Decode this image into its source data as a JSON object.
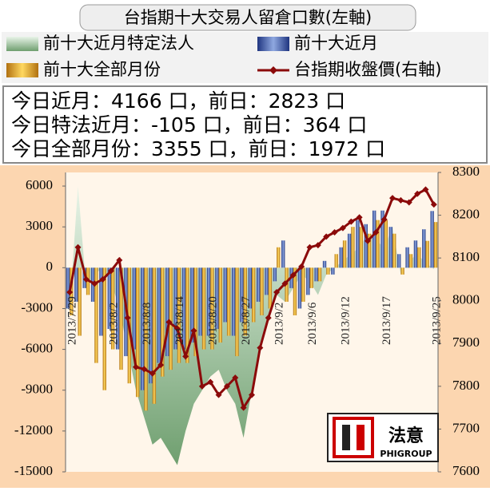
{
  "chart_data": {
    "type": "combo",
    "title": "台指期十大交易人留倉口數(左軸)",
    "info": [
      "今日近月：4166 口，前日：2823 口",
      "今日特法近月：-105 口，前日：364 口",
      "今日全部月份：3355 口，前日：1972 口"
    ],
    "logo": {
      "name": "法意",
      "sub": "PHIGROUP"
    },
    "categories": [
      "2013/7/29",
      null,
      null,
      null,
      null,
      "2013/8/2",
      null,
      null,
      null,
      "2013/8/8",
      null,
      null,
      null,
      "2013/8/14",
      null,
      null,
      null,
      "2013/8/20",
      null,
      null,
      null,
      "2013/8/27",
      null,
      null,
      null,
      "2013/9/2",
      null,
      null,
      null,
      "2013/9/6",
      null,
      null,
      null,
      "2013/9/12",
      null,
      null,
      null,
      null,
      "2013/9/17",
      null,
      null,
      null,
      null,
      null,
      "2013/9/25"
    ],
    "ylim": [
      -15000,
      7000
    ],
    "yticks": [
      6000,
      3000,
      0,
      -3000,
      -6000,
      -9000,
      -12000,
      -15000
    ],
    "y2lim": [
      7600,
      8300
    ],
    "y2ticks": [
      8300,
      8200,
      8100,
      8000,
      7900,
      7800,
      7700,
      7600
    ],
    "grid": false,
    "series": [
      {
        "name": "前十大近月特定法人",
        "type": "area",
        "color": "#8cbf8c",
        "values": [
          -3000,
          6000,
          -1500,
          -500,
          0,
          -1000,
          -3000,
          -6000,
          -9000,
          -11000,
          -13000,
          -12500,
          -13500,
          -14500,
          -12000,
          -10000,
          -9000,
          -8000,
          -7500,
          -9000,
          -10000,
          -12500,
          -9000,
          -6000,
          -3500,
          -2000,
          -2500,
          -1500,
          -500,
          -1000,
          -2000,
          -500,
          0,
          500,
          1000,
          1500,
          2500,
          2000,
          1500,
          3000,
          -500,
          500,
          1000,
          364,
          -105
        ]
      },
      {
        "name": "前十大近月",
        "type": "bar",
        "color": "#3355aa",
        "values": [
          -3000,
          -2500,
          -1500,
          -2500,
          -5000,
          -4500,
          -6000,
          -6500,
          -6000,
          -9000,
          -8500,
          -7000,
          -6500,
          -6000,
          -6000,
          -5500,
          -5000,
          -5000,
          -4500,
          -4000,
          -5000,
          -4000,
          -3000,
          -2500,
          -2000,
          -1000,
          2000,
          -1500,
          -3000,
          -2000,
          -1000,
          500,
          -500,
          1500,
          2500,
          3500,
          3200,
          4200,
          4200,
          3000,
          1000,
          1500,
          2000,
          2823,
          4166
        ]
      },
      {
        "name": "前十大全部月份",
        "type": "bar",
        "color": "#e8a020",
        "values": [
          -3500,
          -5000,
          -2000,
          -7000,
          -9000,
          -6000,
          -7500,
          -8500,
          -9500,
          -10500,
          -10000,
          -8000,
          -7500,
          -7000,
          -7000,
          -6500,
          -6000,
          -6000,
          -5500,
          -5000,
          -6500,
          -5000,
          -4000,
          -3500,
          -3000,
          1500,
          -2500,
          -3500,
          -2500,
          -1500,
          -1000,
          -500,
          1000,
          2000,
          3000,
          3000,
          2500,
          3500,
          3500,
          2500,
          -500,
          1000,
          1500,
          1972,
          3355
        ]
      },
      {
        "name": "台指期收盤價(右軸)",
        "type": "line",
        "axis": "y2",
        "color": "#8b0a0a",
        "values": [
          8020,
          8125,
          8050,
          8040,
          8050,
          8070,
          8095,
          7960,
          7845,
          7840,
          7830,
          7850,
          7950,
          7935,
          7870,
          7930,
          7800,
          7810,
          7780,
          7800,
          7820,
          7750,
          7780,
          7890,
          7960,
          8020,
          8040,
          8060,
          8080,
          8125,
          8130,
          8150,
          8160,
          8170,
          8185,
          8195,
          8140,
          8160,
          8190,
          8240,
          8235,
          8230,
          8250,
          8260,
          8225
        ]
      }
    ]
  }
}
